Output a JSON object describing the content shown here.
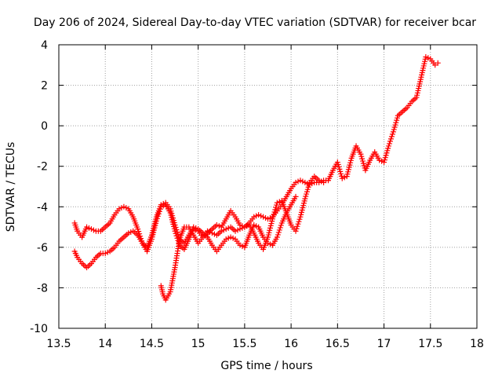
{
  "chart_data": {
    "type": "scatter",
    "title": "Day 206 of 2024, Sidereal Day-to-day VTEC variation (SDTVAR) for receiver bcar",
    "xlabel": "GPS time / hours",
    "ylabel": "SDTVAR / TECUs",
    "xlim": [
      13.5,
      18
    ],
    "ylim": [
      -10,
      4
    ],
    "xticks": [
      13.5,
      14,
      14.5,
      15,
      15.5,
      16,
      16.5,
      17,
      17.5,
      18
    ],
    "xtick_labels": [
      "13.5",
      "14",
      "14.5",
      "15",
      "15.5",
      "16",
      "16.5",
      "17",
      "17.5",
      "18"
    ],
    "yticks": [
      -10,
      -8,
      -6,
      -4,
      -2,
      0,
      2,
      4
    ],
    "ytick_labels": [
      "-10",
      "-8",
      "-6",
      "-4",
      "-2",
      "0",
      "2",
      "4"
    ],
    "grid": true,
    "marker": "+",
    "series_color": "#ff0000",
    "series": [
      {
        "name": "track-1",
        "x": [
          13.67,
          13.7,
          13.75,
          13.8,
          13.85,
          13.9,
          13.95,
          14.0,
          14.05,
          14.1,
          14.15,
          14.2,
          14.25,
          14.3,
          14.35,
          14.4,
          14.45,
          14.5,
          14.55,
          14.6,
          14.65,
          14.7,
          14.75,
          14.8,
          14.85,
          14.9,
          14.95,
          15.0,
          15.05,
          15.1,
          15.15,
          15.2,
          15.25,
          15.3,
          15.35,
          15.4,
          15.45,
          15.5,
          15.55,
          15.6,
          15.65,
          15.7,
          15.75,
          15.8,
          15.85,
          15.9,
          15.95,
          16.0,
          16.05,
          16.1,
          16.15,
          16.2,
          16.25,
          16.3,
          16.35,
          16.4,
          16.45,
          16.5,
          16.55,
          16.6,
          16.65,
          16.7,
          16.75,
          16.8,
          16.85,
          16.9,
          16.95,
          17.0,
          17.05,
          17.1,
          17.15,
          17.2,
          17.25,
          17.3,
          17.35,
          17.4,
          17.45,
          17.5,
          17.55,
          17.58
        ],
        "y": [
          -4.8,
          -5.2,
          -5.5,
          -5.0,
          -5.1,
          -5.2,
          -5.2,
          -5.0,
          -4.8,
          -4.4,
          -4.1,
          -4.0,
          -4.1,
          -4.5,
          -5.1,
          -5.8,
          -6.2,
          -5.6,
          -4.7,
          -4.0,
          -3.9,
          -4.3,
          -5.2,
          -5.9,
          -6.1,
          -5.6,
          -5.1,
          -5.2,
          -5.5,
          -5.3,
          -5.1,
          -4.9,
          -5.0,
          -4.6,
          -4.2,
          -4.5,
          -4.9,
          -5.0,
          -4.8,
          -4.5,
          -4.4,
          -4.5,
          -4.6,
          -4.5,
          -4.2,
          -3.9,
          -3.5,
          -3.1,
          -2.8,
          -2.7,
          -2.8,
          -2.9,
          -2.8,
          -2.8,
          -2.7,
          -2.7,
          -2.2,
          -1.8,
          -2.6,
          -2.5,
          -1.6,
          -1.0,
          -1.4,
          -2.2,
          -1.7,
          -1.3,
          -1.7,
          -1.8,
          -1.0,
          -0.3,
          0.5,
          0.7,
          0.9,
          1.2,
          1.4,
          2.4,
          3.4,
          3.3,
          3.0,
          3.1
        ]
      },
      {
        "name": "track-2",
        "x": [
          13.67,
          13.7,
          13.75,
          13.8,
          13.85,
          13.9,
          13.95,
          14.0,
          14.05,
          14.1,
          14.15,
          14.2,
          14.25,
          14.3,
          14.35,
          14.4,
          14.45,
          14.5,
          14.55,
          14.6,
          14.65,
          14.7,
          14.75,
          14.8,
          14.85,
          14.9,
          14.95,
          15.0,
          15.05,
          15.1,
          15.15,
          15.2,
          15.25,
          15.3,
          15.35,
          15.4,
          15.45,
          15.5,
          15.55,
          15.6,
          15.65,
          15.7,
          15.75,
          15.8,
          15.85,
          15.9,
          15.95,
          16.0,
          16.05
        ],
        "y": [
          -6.2,
          -6.5,
          -6.8,
          -7.0,
          -6.8,
          -6.5,
          -6.3,
          -6.3,
          -6.2,
          -6.0,
          -5.7,
          -5.5,
          -5.3,
          -5.2,
          -5.4,
          -5.8,
          -6.0,
          -5.4,
          -4.5,
          -3.9,
          -3.8,
          -4.1,
          -4.9,
          -5.6,
          -5.8,
          -5.4,
          -5.0,
          -5.1,
          -5.3,
          -5.5,
          -5.9,
          -6.2,
          -5.9,
          -5.6,
          -5.5,
          -5.6,
          -5.9,
          -6.0,
          -5.4,
          -4.9,
          -5.0,
          -5.5,
          -5.8,
          -5.9,
          -5.5,
          -4.8,
          -4.3,
          -3.9,
          -3.5
        ]
      },
      {
        "name": "track-3",
        "x": [
          14.6,
          14.62,
          14.65,
          14.7,
          14.75,
          14.8,
          14.85,
          14.9,
          14.95,
          15.0,
          15.05,
          15.1,
          15.15,
          15.2,
          15.25,
          15.3,
          15.35,
          15.4,
          15.45,
          15.5,
          15.55,
          15.6,
          15.65,
          15.7,
          15.75,
          15.8,
          15.85,
          15.9,
          15.95,
          16.0,
          16.05,
          16.1,
          16.15,
          16.2,
          16.25,
          16.3,
          16.35
        ],
        "y": [
          -7.9,
          -8.3,
          -8.6,
          -8.2,
          -7.0,
          -5.6,
          -5.0,
          -5.0,
          -5.4,
          -5.8,
          -5.5,
          -5.2,
          -5.3,
          -5.4,
          -5.2,
          -5.1,
          -5.0,
          -5.2,
          -5.1,
          -5.0,
          -4.9,
          -5.3,
          -5.8,
          -6.1,
          -5.5,
          -4.6,
          -3.8,
          -3.7,
          -4.3,
          -4.9,
          -5.2,
          -4.5,
          -3.6,
          -2.8,
          -2.5,
          -2.7,
          -2.8
        ]
      }
    ]
  }
}
